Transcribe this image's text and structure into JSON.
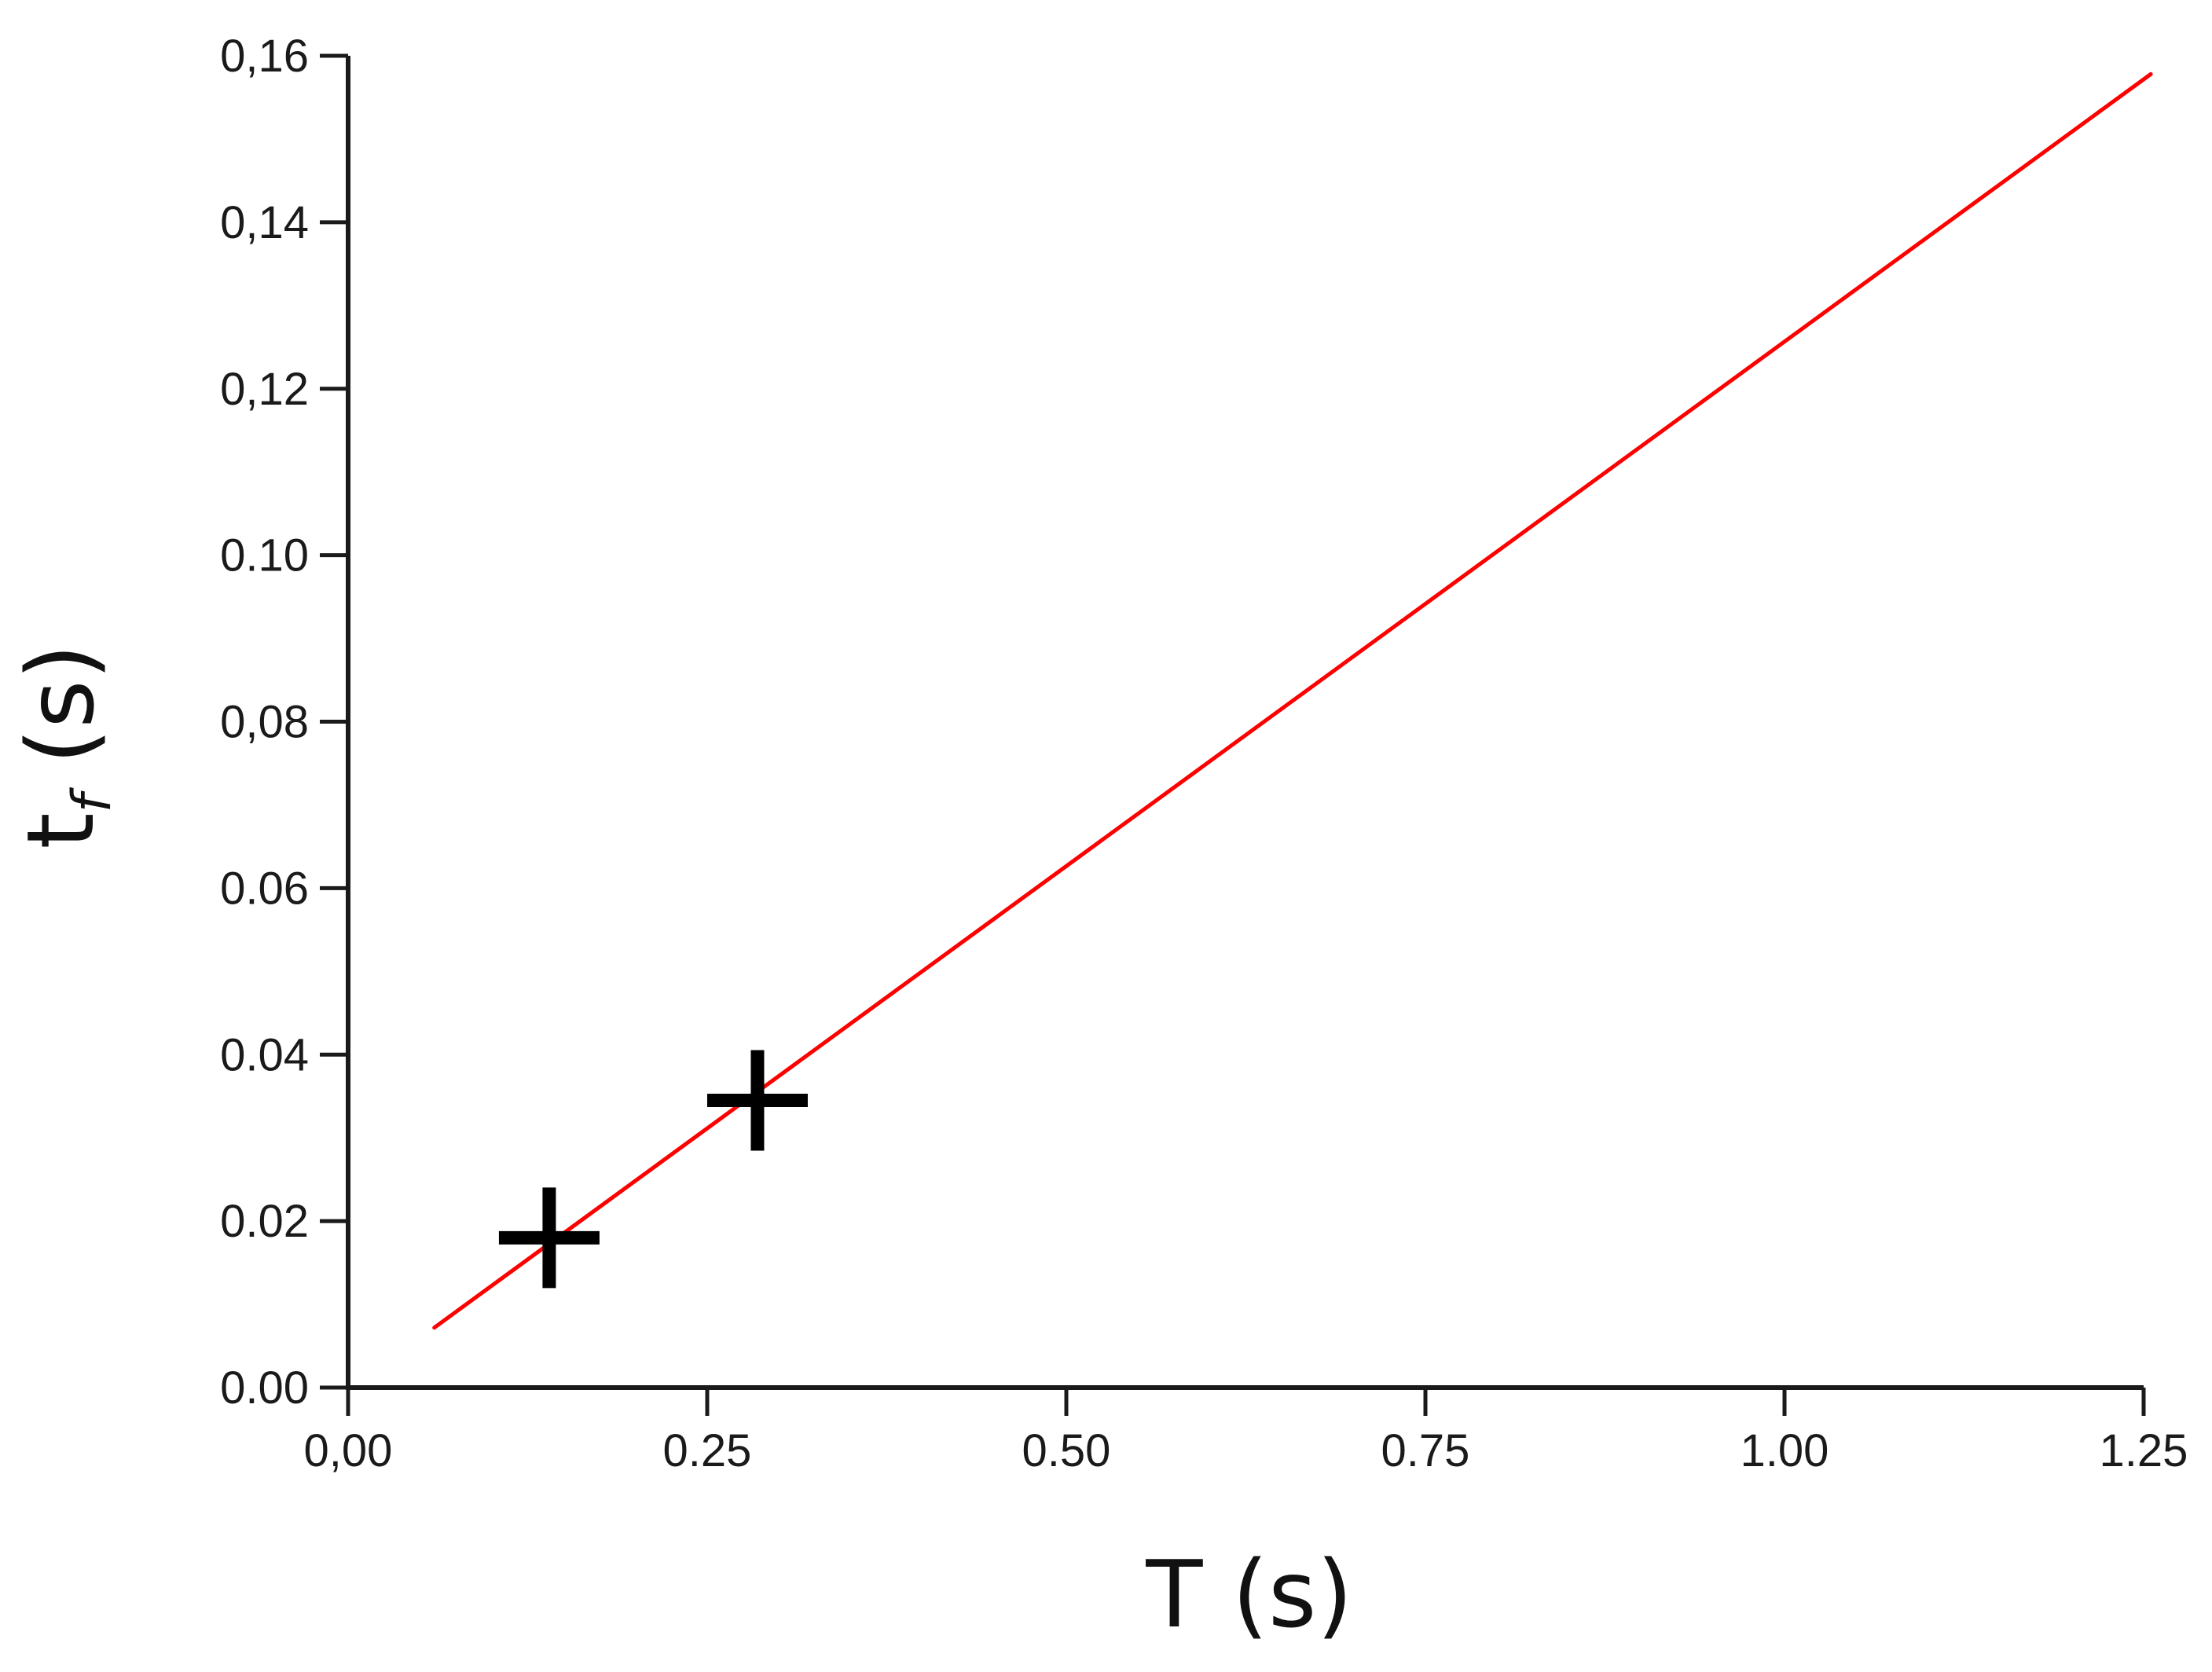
{
  "chart_data": {
    "type": "scatter",
    "title": "",
    "xlabel": "T (s)",
    "ylabel": {
      "main": "t",
      "sub": "f",
      "unit": " (s)"
    },
    "xlim": [
      0.0,
      1.25
    ],
    "ylim": [
      0.0,
      0.16
    ],
    "x_ticks": [
      0.0,
      0.25,
      0.5,
      0.75,
      1.0,
      1.25
    ],
    "x_tick_labels": [
      "0,00",
      "0.25",
      "0.50",
      "0.75",
      "1.00",
      "1.25"
    ],
    "y_ticks": [
      0.0,
      0.02,
      0.04,
      0.06,
      0.08,
      0.1,
      0.12,
      0.14,
      0.16
    ],
    "y_tick_labels": [
      "0.00",
      "0.02",
      "0.04",
      "0.06",
      "0,08",
      "0.10",
      "0,12",
      "0,14",
      "0,16"
    ],
    "grid": false,
    "series": [
      {
        "kind": "points",
        "marker": "plus",
        "color": "#000000",
        "points": [
          {
            "x": 0.14,
            "y": 0.018
          },
          {
            "x": 0.285,
            "y": 0.0345
          }
        ]
      },
      {
        "kind": "line",
        "color": "#ff0000",
        "points": [
          {
            "x": 0.06,
            "y": 0.0072
          },
          {
            "x": 1.255,
            "y": 0.1578
          }
        ]
      }
    ]
  }
}
